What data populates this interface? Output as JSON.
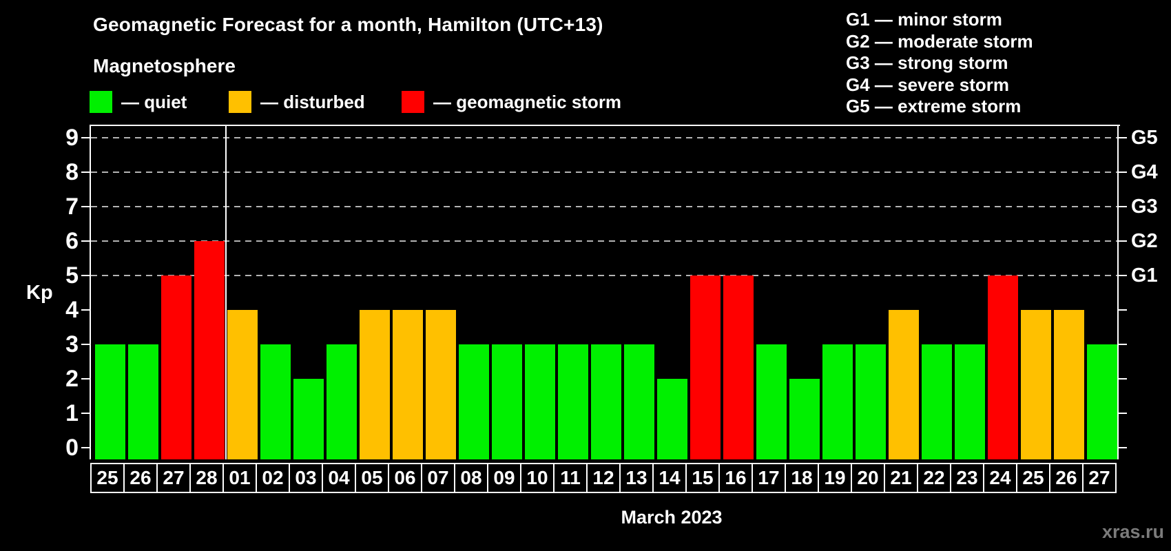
{
  "header": {
    "title": "Geomagnetic Forecast for a month, Hamilton (UTC+13)",
    "subtitle": "Magnetosphere",
    "legend": [
      {
        "id": "quiet",
        "label": "— quiet",
        "color": "#00f000"
      },
      {
        "id": "disturbed",
        "label": "— disturbed",
        "color": "#ffc000"
      },
      {
        "id": "storm",
        "label": "— geomagnetic storm",
        "color": "#ff0000"
      }
    ],
    "g_scale": [
      "G1 — minor storm",
      "G2 — moderate storm",
      "G3 — strong storm",
      "G4 — severe storm",
      "G5 — extreme storm"
    ]
  },
  "chart_data": {
    "type": "bar",
    "title": "Geomagnetic Forecast for a month, Hamilton (UTC+13)",
    "ylabel": "Kp",
    "xlabel": "March 2023",
    "ylim": [
      0,
      9
    ],
    "y_ticks": [
      0,
      1,
      2,
      3,
      4,
      5,
      6,
      7,
      8,
      9
    ],
    "dashed_gridlines_at_kp": [
      5,
      6,
      7,
      8,
      9
    ],
    "right_axis": [
      {
        "kp": 5,
        "label": "G1"
      },
      {
        "kp": 6,
        "label": "G2"
      },
      {
        "kp": 7,
        "label": "G3"
      },
      {
        "kp": 8,
        "label": "G4"
      },
      {
        "kp": 9,
        "label": "G5"
      }
    ],
    "categories": [
      "25",
      "26",
      "27",
      "28",
      "01",
      "02",
      "03",
      "04",
      "05",
      "06",
      "07",
      "08",
      "09",
      "10",
      "11",
      "12",
      "13",
      "14",
      "15",
      "16",
      "17",
      "18",
      "19",
      "20",
      "21",
      "22",
      "23",
      "24",
      "25",
      "26",
      "27"
    ],
    "values": [
      3,
      3,
      5,
      6,
      4,
      3,
      2,
      3,
      4,
      4,
      4,
      3,
      3,
      3,
      3,
      3,
      3,
      2,
      5,
      5,
      3,
      2,
      3,
      3,
      4,
      3,
      3,
      5,
      4,
      4,
      3
    ],
    "month_separator_after_index": 3,
    "color_rules": {
      "quiet_max": 3,
      "disturbed_max": 4
    },
    "colors": {
      "quiet": "#00f000",
      "disturbed": "#ffc000",
      "storm": "#ff0000",
      "grid": "#b4b4b4",
      "axis": "#ffffff"
    },
    "legend_position": "top-left",
    "grid": "dashed horizontal at Kp 5-9 only"
  },
  "footer": {
    "month_label": "March 2023",
    "watermark": "xras.ru"
  }
}
